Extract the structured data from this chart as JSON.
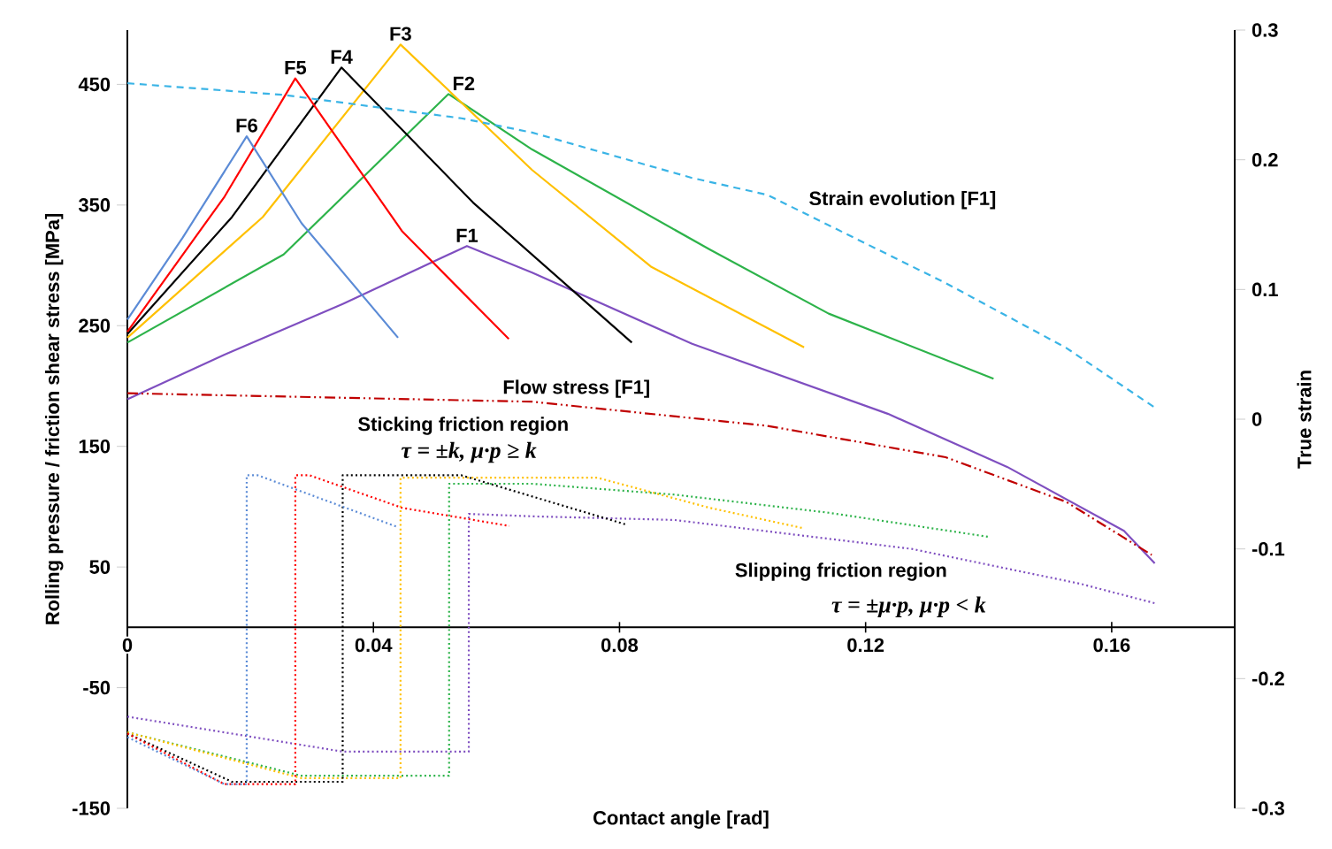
{
  "chart_data": {
    "type": "line",
    "xlabel": "Contact angle [rad]",
    "ylabel": "Rolling pressure / friction shear stress [MPa]",
    "y2label": "True strain",
    "xlim": [
      0,
      0.18
    ],
    "xticks": [
      0,
      0.04,
      0.08,
      0.12,
      0.16
    ],
    "ylim": [
      -150,
      495
    ],
    "yticks": [
      -150,
      -50,
      50,
      150,
      250,
      350,
      450
    ],
    "y2lim": [
      -0.3,
      0.3
    ],
    "y2ticks": [
      -0.3,
      -0.2,
      -0.1,
      0,
      0.1,
      0.2,
      0.3
    ],
    "annotations": [
      "Sticking friction region",
      "τ = ±k,  μ·p ≥ k",
      "Slipping friction region",
      "τ = ±μ·p,  μ·p < k"
    ],
    "series": [
      {
        "name": "F1",
        "color": "#7f4fc0",
        "line_style": "solid",
        "x": [
          0,
          0.0158,
          0.035,
          0.0552,
          0.0658,
          0.0918,
          0.1236,
          0.143,
          0.162,
          0.167
        ],
        "values": [
          189,
          226,
          268,
          316,
          294,
          235,
          177,
          133,
          80,
          53
        ]
      },
      {
        "name": "F2",
        "color": "#2db34a",
        "line_style": "solid",
        "x": [
          0,
          0.0254,
          0.0522,
          0.0658,
          0.0947,
          0.114,
          0.1408
        ],
        "values": [
          236,
          309,
          442,
          396,
          313,
          260,
          206
        ]
      },
      {
        "name": "F3",
        "color": "#ffc000",
        "line_style": "solid",
        "x": [
          0,
          0.022,
          0.0444,
          0.0658,
          0.0851,
          0.11
        ],
        "values": [
          240,
          340,
          483,
          379,
          299,
          232
        ]
      },
      {
        "name": "F4",
        "color": "#000000",
        "line_style": "solid",
        "x": [
          0,
          0.017,
          0.0348,
          0.0562,
          0.082
        ],
        "values": [
          243,
          340,
          464,
          352,
          236
        ]
      },
      {
        "name": "F5",
        "color": "#ff0000",
        "line_style": "solid",
        "x": [
          0,
          0.0158,
          0.0273,
          0.0447,
          0.062
        ],
        "values": [
          245,
          357,
          455,
          328,
          239
        ]
      },
      {
        "name": "F6",
        "color": "#5b8bd6",
        "line_style": "solid",
        "x": [
          0,
          0.009,
          0.0194,
          0.0283,
          0.044
        ],
        "values": [
          255,
          323,
          407,
          335,
          240
        ]
      },
      {
        "color": "#7f4fc0",
        "line_style": "dotted",
        "x": [
          0,
          0.035,
          0.0555,
          0.0555,
          0.0658,
          0.0889,
          0.1275,
          0.155,
          0.167
        ],
        "values": [
          -74,
          -103,
          -103,
          94,
          92,
          89,
          65,
          36,
          20
        ]
      },
      {
        "color": "#2db34a",
        "line_style": "dotted",
        "x": [
          0,
          0.0283,
          0.0523,
          0.0523,
          0.0658,
          0.0889,
          0.114,
          0.14
        ],
        "values": [
          -87,
          -123,
          -123,
          119,
          119,
          110,
          95,
          75
        ]
      },
      {
        "color": "#ffc000",
        "line_style": "dotted",
        "x": [
          0,
          0.0283,
          0.0444,
          0.0444,
          0.0764,
          0.0947,
          0.11
        ],
        "values": [
          -87,
          -125,
          -125,
          124,
          124,
          99,
          82
        ]
      },
      {
        "color": "#000000",
        "line_style": "dotted",
        "x": [
          0,
          0.017,
          0.035,
          0.035,
          0.0543,
          0.0812
        ],
        "values": [
          -88,
          -128,
          -128,
          126,
          126,
          85
        ]
      },
      {
        "color": "#ff0000",
        "line_style": "dotted",
        "x": [
          0,
          0.0158,
          0.0273,
          0.0273,
          0.0296,
          0.0447,
          0.0621
        ],
        "values": [
          -88,
          -130,
          -130,
          126,
          126,
          99,
          84
        ]
      },
      {
        "color": "#5b8bd6",
        "line_style": "dotted",
        "x": [
          0,
          0.0158,
          0.0194,
          0.0194,
          0.0212,
          0.044
        ],
        "values": [
          -91,
          -130,
          -130,
          126,
          126,
          83
        ]
      },
      {
        "name": "Strain evolution [F1]",
        "color": "#3ab4e6",
        "line_style": "dashed",
        "axis": "y2",
        "x": [
          0,
          0.0254,
          0.0543,
          0.0658,
          0.0918,
          0.104,
          0.133,
          0.1526,
          0.167
        ],
        "values": [
          0.259,
          0.25,
          0.232,
          0.221,
          0.186,
          0.173,
          0.105,
          0.055,
          0.009
        ]
      },
      {
        "name": "Flow stress [F1]",
        "color": "#c00000",
        "line_style": "dashdot",
        "x": [
          0,
          0.0658,
          0.104,
          0.133,
          0.1526,
          0.1665
        ],
        "values": [
          194,
          187,
          167,
          141,
          104,
          60
        ]
      }
    ]
  }
}
